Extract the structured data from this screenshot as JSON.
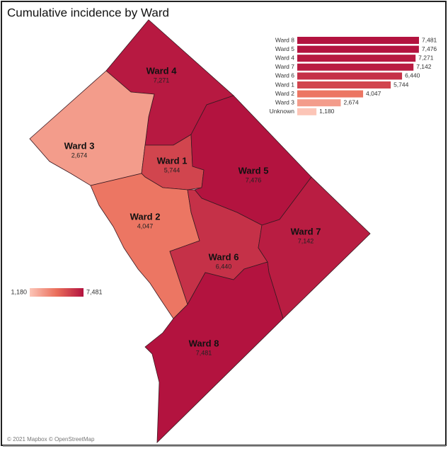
{
  "title": "Cumulative incidence by Ward",
  "map": {
    "regions": [
      {
        "name": "Ward 4",
        "value": 7271,
        "value_label": "7,271"
      },
      {
        "name": "Ward 3",
        "value": 2674,
        "value_label": "2,674"
      },
      {
        "name": "Ward 1",
        "value": 5744,
        "value_label": "5,744"
      },
      {
        "name": "Ward 5",
        "value": 7476,
        "value_label": "7,476"
      },
      {
        "name": "Ward 2",
        "value": 4047,
        "value_label": "4,047"
      },
      {
        "name": "Ward 6",
        "value": 6440,
        "value_label": "6,440"
      },
      {
        "name": "Ward 7",
        "value": 7142,
        "value_label": "7,142"
      },
      {
        "name": "Ward 8",
        "value": 7481,
        "value_label": "7,481"
      }
    ],
    "color_scale": [
      "#fcc5b7",
      "#ea6e5b",
      "#b3133f"
    ],
    "legend": {
      "min": {
        "value": 1180,
        "label": "1,180"
      },
      "max": {
        "value": 7481,
        "label": "7,481"
      }
    },
    "attribution": "© 2021 Mapbox © OpenStreetMap"
  },
  "chart_data": {
    "type": "bar",
    "orientation": "horizontal",
    "categories": [
      "Ward 8",
      "Ward 5",
      "Ward 4",
      "Ward 7",
      "Ward 6",
      "Ward 1",
      "Ward 2",
      "Ward 3",
      "Unknown"
    ],
    "values": [
      7481,
      7476,
      7271,
      7142,
      6440,
      5744,
      4047,
      2674,
      1180
    ],
    "value_labels": [
      "7,481",
      "7,476",
      "7,271",
      "7,142",
      "6,440",
      "5,744",
      "4,047",
      "2,674",
      "1,180"
    ]
  }
}
